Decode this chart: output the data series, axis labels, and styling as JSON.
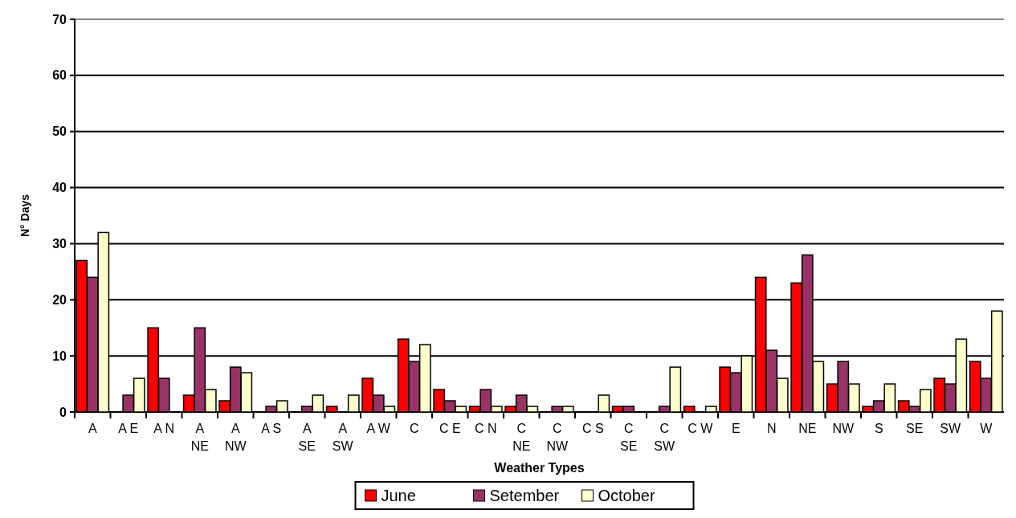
{
  "chart_data": {
    "type": "bar",
    "xlabel": "Weather Types",
    "ylabel": "N° Days",
    "categories": [
      "A",
      "A E",
      "A N",
      "A\nNE",
      "A\nNW",
      "A S",
      "A\nSE",
      "A\nSW",
      "A W",
      "C",
      "C E",
      "C N",
      "C\nNE",
      "C\nNW",
      "C S",
      "C\nSE",
      "C\nSW",
      "C W",
      "E",
      "N",
      "NE",
      "NW",
      "S",
      "SE",
      "SW",
      "W"
    ],
    "series": [
      {
        "name": "June",
        "color": "#ff0000",
        "values": [
          27,
          0,
          15,
          3,
          2,
          0,
          0,
          1,
          6,
          13,
          4,
          1,
          1,
          0,
          0,
          1,
          0,
          1,
          8,
          24,
          23,
          5,
          1,
          2,
          6,
          9
        ]
      },
      {
        "name": "Setember",
        "color": "#993366",
        "values": [
          24,
          3,
          6,
          15,
          8,
          1,
          1,
          0,
          3,
          9,
          2,
          4,
          3,
          1,
          0,
          1,
          1,
          0,
          7,
          11,
          28,
          9,
          2,
          1,
          5,
          6
        ]
      },
      {
        "name": "October",
        "color": "#ffffcc",
        "values": [
          32,
          6,
          0,
          4,
          7,
          2,
          3,
          3,
          1,
          12,
          1,
          1,
          1,
          1,
          3,
          0,
          8,
          1,
          10,
          6,
          9,
          5,
          5,
          4,
          13,
          18
        ]
      }
    ],
    "ylim": [
      0,
      70
    ],
    "yticks": [
      0,
      10,
      20,
      30,
      40,
      50,
      60,
      70
    ],
    "grid": "y",
    "legend": "bottom"
  }
}
